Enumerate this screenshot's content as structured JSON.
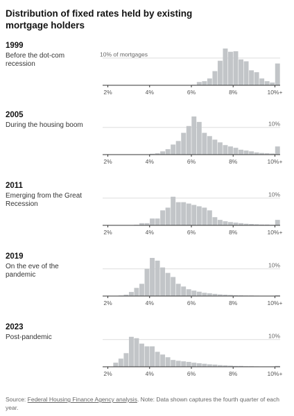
{
  "title": "Distribution of fixed rates held by existing mortgage holders",
  "source": {
    "prefix": "Source: ",
    "link_text": "Federal Housing Finance Agency analysis",
    "suffix": ". Note: Data shown captures the fourth quarter of each year."
  },
  "colors": {
    "bar": "#c2c5c8",
    "baseline": "#333333",
    "gridline": "#dddddd"
  },
  "chart_data": [
    {
      "type": "bar",
      "year": "1999",
      "subtitle": "Before the dot-com recession",
      "ref_label": "10% of mortgages",
      "x_ticks": [
        "2%",
        "4%",
        "6%",
        "8%",
        "10%+"
      ],
      "x_tick_values": [
        2,
        4,
        6,
        8,
        10
      ],
      "bin_start": 1.75,
      "bin_width": 0.25,
      "ylim": [
        0,
        14
      ],
      "ref_value": 10,
      "values": [
        0,
        0,
        0,
        0,
        0,
        0,
        0,
        0,
        0,
        0,
        0,
        0,
        0,
        0,
        0,
        0,
        0,
        0.2,
        1.2,
        1.5,
        2.5,
        5.2,
        9.0,
        13.5,
        12.3,
        12.5,
        9.5,
        8.8,
        5.5,
        4.8,
        2.5,
        1.5,
        1.0,
        8.0
      ]
    },
    {
      "type": "bar",
      "year": "2005",
      "subtitle": "During the housing boom",
      "ref_label": "10%",
      "x_ticks": [
        "2%",
        "4%",
        "6%",
        "8%",
        "10%+"
      ],
      "x_tick_values": [
        2,
        4,
        6,
        8,
        10
      ],
      "bin_start": 1.75,
      "bin_width": 0.25,
      "ylim": [
        0,
        14
      ],
      "ref_value": 10,
      "values": [
        0,
        0,
        0,
        0,
        0,
        0,
        0,
        0,
        0.1,
        0.3,
        0.5,
        1.2,
        2.0,
        3.7,
        5.0,
        8.0,
        10.5,
        14.0,
        12.0,
        8.0,
        6.8,
        5.5,
        4.5,
        3.5,
        3.0,
        2.5,
        1.8,
        1.5,
        1.2,
        0.8,
        0.6,
        0.5,
        0.4,
        3.0
      ]
    },
    {
      "type": "bar",
      "year": "2011",
      "subtitle": "Emerging from the Great Recession",
      "ref_label": "10%",
      "x_ticks": [
        "2%",
        "4%",
        "6%",
        "8%",
        "10%+"
      ],
      "x_tick_values": [
        2,
        4,
        6,
        8,
        10
      ],
      "bin_start": 1.75,
      "bin_width": 0.25,
      "ylim": [
        0,
        14
      ],
      "ref_value": 10,
      "values": [
        0,
        0,
        0,
        0,
        0,
        0.1,
        0.2,
        0.8,
        0.8,
        2.5,
        2.5,
        5.5,
        6.5,
        10.5,
        8.5,
        8.5,
        8.0,
        7.5,
        7.0,
        6.5,
        5.5,
        3.0,
        2.0,
        1.5,
        1.2,
        1.0,
        0.8,
        0.6,
        0.5,
        0.4,
        0.3,
        0.3,
        0.2,
        2.0
      ]
    },
    {
      "type": "bar",
      "year": "2019",
      "subtitle": "On the eve of the pandemic",
      "ref_label": "10%",
      "x_ticks": [
        "2%",
        "4%",
        "6%",
        "8%",
        "10%+"
      ],
      "x_tick_values": [
        2,
        4,
        6,
        8,
        10
      ],
      "bin_start": 1.75,
      "bin_width": 0.25,
      "ylim": [
        0,
        14
      ],
      "ref_value": 10,
      "values": [
        0,
        0,
        0,
        0.2,
        0.5,
        1.5,
        3.0,
        4.5,
        10.0,
        14.0,
        13.0,
        10.5,
        8.5,
        7.0,
        4.5,
        3.5,
        2.5,
        2.0,
        1.6,
        1.2,
        1.0,
        0.8,
        0.6,
        0.5,
        0.4,
        0.3,
        0.25,
        0.2,
        0.2,
        0.15,
        0.1,
        0.1,
        0.1,
        0.3
      ]
    },
    {
      "type": "bar",
      "year": "2023",
      "subtitle": "Post-pandemic",
      "ref_label": "10%",
      "x_ticks": [
        "2%",
        "4%",
        "6%",
        "8%",
        "10%+"
      ],
      "x_tick_values": [
        2,
        4,
        6,
        8,
        10
      ],
      "bin_start": 1.75,
      "bin_width": 0.25,
      "ylim": [
        0,
        14
      ],
      "ref_value": 10,
      "values": [
        0,
        0,
        1.5,
        3.0,
        5.0,
        11.0,
        10.5,
        8.5,
        7.5,
        7.5,
        5.5,
        4.5,
        3.5,
        2.5,
        2.2,
        2.0,
        1.8,
        1.5,
        1.3,
        1.1,
        0.9,
        0.8,
        0.6,
        0.5,
        0.4,
        0.3,
        0.3,
        0.2,
        0.2,
        0.15,
        0.1,
        0.1,
        0.1,
        0.3
      ]
    }
  ]
}
